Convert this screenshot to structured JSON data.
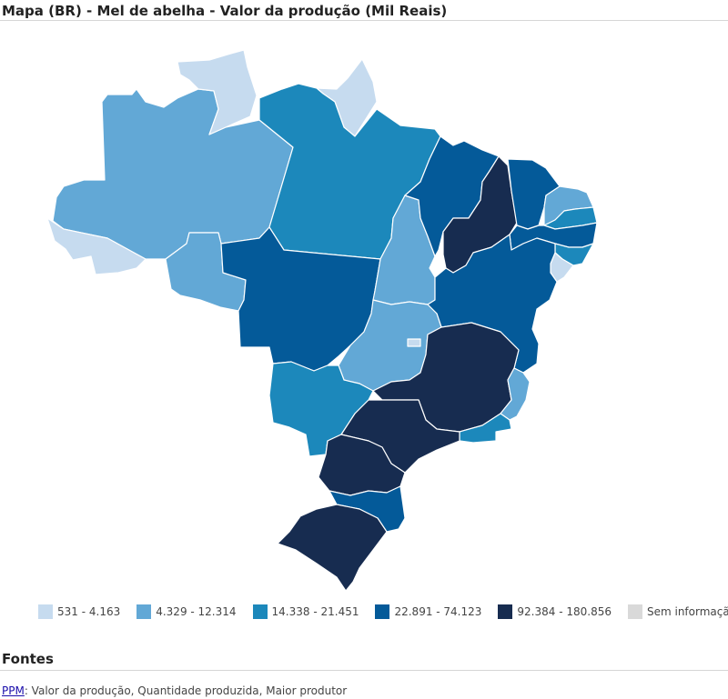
{
  "title": "Mapa (BR) - Mel de abelha - Valor da produção (Mil Reais)",
  "legend": [
    {
      "label": "531 - 4.163",
      "color": "#c6dbef"
    },
    {
      "label": "4.329 - 12.314",
      "color": "#62a8d6"
    },
    {
      "label": "14.338 - 21.451",
      "color": "#1c88bb"
    },
    {
      "label": "22.891 - 74.123",
      "color": "#045a99"
    },
    {
      "label": "92.384 - 180.856",
      "color": "#172c50"
    },
    {
      "label": "Sem informação",
      "color": "#d9d9d9"
    }
  ],
  "states": [
    {
      "uf": "RR",
      "class": 0
    },
    {
      "uf": "AP",
      "class": 0
    },
    {
      "uf": "AC",
      "class": 0
    },
    {
      "uf": "SE",
      "class": 0
    },
    {
      "uf": "DF",
      "class": 0
    },
    {
      "uf": "AM",
      "class": 1
    },
    {
      "uf": "RO",
      "class": 1
    },
    {
      "uf": "TO",
      "class": 1
    },
    {
      "uf": "GO",
      "class": 1
    },
    {
      "uf": "ES",
      "class": 1
    },
    {
      "uf": "RN",
      "class": 1
    },
    {
      "uf": "PA",
      "class": 2
    },
    {
      "uf": "MS",
      "class": 2
    },
    {
      "uf": "RJ",
      "class": 2
    },
    {
      "uf": "PB",
      "class": 2
    },
    {
      "uf": "AL",
      "class": 2
    },
    {
      "uf": "MT",
      "class": 3
    },
    {
      "uf": "MA",
      "class": 3
    },
    {
      "uf": "CE",
      "class": 3
    },
    {
      "uf": "BA",
      "class": 3
    },
    {
      "uf": "PE",
      "class": 3
    },
    {
      "uf": "SC",
      "class": 3
    },
    {
      "uf": "PI",
      "class": 4
    },
    {
      "uf": "MG",
      "class": 4
    },
    {
      "uf": "SP",
      "class": 4
    },
    {
      "uf": "PR",
      "class": 4
    },
    {
      "uf": "RS",
      "class": 4
    }
  ],
  "sources": {
    "heading": "Fontes",
    "link": "PPM",
    "text": ": Valor da produção, Quantidade produzida, Maior produtor"
  }
}
